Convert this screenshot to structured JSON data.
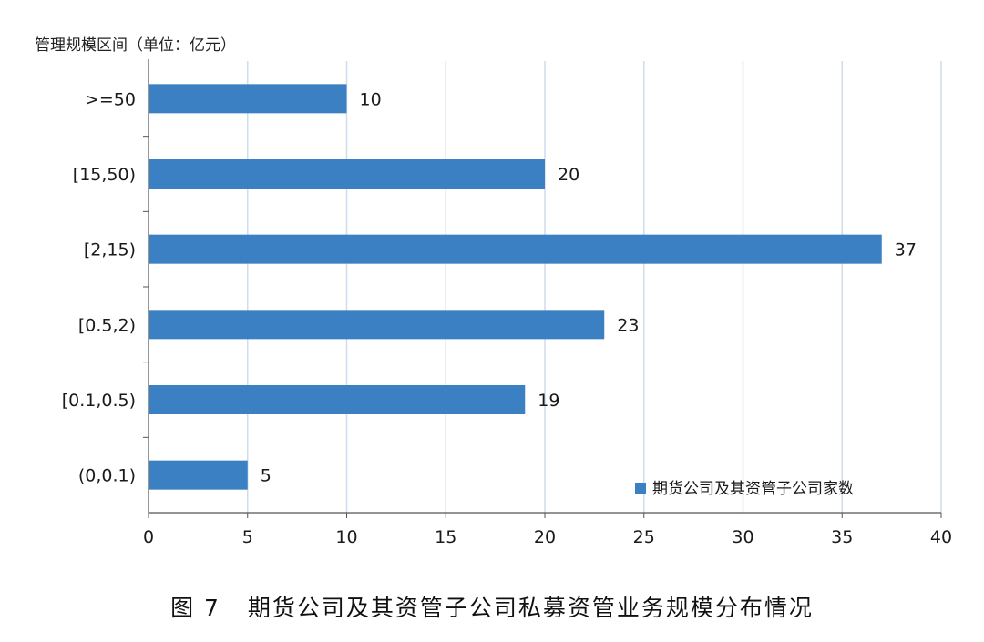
{
  "caption": {
    "figure_label": "图 7",
    "title": "期货公司及其资管子公司私募资管业务规模分布情况"
  },
  "colors": {
    "bar": "#3b80c3",
    "grid": "#cfdcec",
    "axis": "#555555",
    "text": "#1a1a1a"
  },
  "chart_data": {
    "type": "bar",
    "orientation": "horizontal",
    "ylabel": "管理规模区间（单位：亿元）",
    "xlabel": "",
    "categories": [
      ">=50",
      "[15,50)",
      "[2,15)",
      "[0.5,2)",
      "[0.1,0.5)",
      "(0,0.1)"
    ],
    "series": [
      {
        "name": "期货公司及其资管子公司家数",
        "values": [
          10,
          20,
          37,
          23,
          19,
          5
        ]
      }
    ],
    "xlim": [
      0,
      40
    ],
    "xticks": [
      0,
      5,
      10,
      15,
      20,
      25,
      30,
      35,
      40
    ],
    "grid": true,
    "data_labels": true,
    "legend_position": "bottom-right"
  }
}
